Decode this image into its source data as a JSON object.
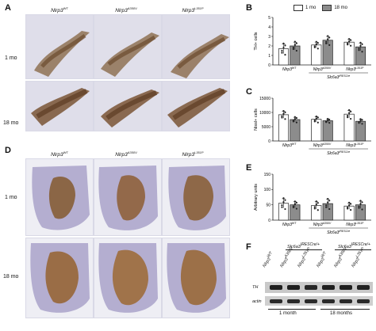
{
  "panels": {
    "A": {
      "letter": "A",
      "genotypes": [
        "Nlrp3",
        "Nlrp3",
        "Nlrp3"
      ],
      "genotype_sups": [
        "WT",
        "A350V",
        "L351P"
      ],
      "rows": [
        "1 mo",
        "18 mo"
      ]
    },
    "D": {
      "letter": "D",
      "genotypes": [
        "Nlrp3",
        "Nlrp3",
        "Nlrp3"
      ],
      "genotype_sups": [
        "WT",
        "A350V",
        "L351P"
      ],
      "rows": [
        "1 mo",
        "18 mo"
      ]
    },
    "B": {
      "letter": "B"
    },
    "C": {
      "letter": "C"
    },
    "E": {
      "letter": "E"
    },
    "F": {
      "letter": "F"
    }
  },
  "legend": {
    "items": [
      {
        "label": "1 mo",
        "color": "#ffffff"
      },
      {
        "label": "18 mo",
        "color": "#8c8c8c"
      }
    ]
  },
  "xaxis_groups": {
    "lane1": "Nlrp3",
    "lane1_sup": "WT",
    "lane2": "Nlrp3",
    "lane2_sup": "A350V",
    "lane3": "Nlrp3",
    "lane3_sup": "L351P",
    "driver": "Slc6a3",
    "driver_sup": "IRESCre"
  },
  "chart_data": [
    {
      "panel": "B",
      "type": "bar",
      "ylabel": "TH+ cells",
      "ylim": [
        0,
        5
      ],
      "yticks": [
        "0",
        "1",
        "2",
        "3",
        "4",
        "5"
      ],
      "groups": [
        "WT",
        "A350V",
        "L351P"
      ],
      "series": [
        {
          "name": "1 mo",
          "values": [
            1.7,
            2.1,
            2.4
          ]
        },
        {
          "name": "18 mo",
          "values": [
            2.0,
            2.6,
            1.9
          ]
        }
      ],
      "errors": [
        [
          0.5,
          0.3,
          0.3
        ],
        [
          0.4,
          0.4,
          0.4
        ]
      ]
    },
    {
      "panel": "C",
      "type": "bar",
      "ylabel": "Nissl+ cells",
      "ylim": [
        0,
        15000
      ],
      "yticks": [
        "0",
        "5000",
        "10000",
        "15000"
      ],
      "groups": [
        "WT",
        "A350V",
        "L351P"
      ],
      "series": [
        {
          "name": "1 mo",
          "values": [
            9200,
            7600,
            9400
          ]
        },
        {
          "name": "18 mo",
          "values": [
            7500,
            7100,
            6900
          ]
        }
      ],
      "errors": [
        [
          1200,
          900,
          1300
        ],
        [
          800,
          600,
          700
        ]
      ]
    },
    {
      "panel": "E",
      "type": "bar",
      "ylabel": "Arbitrary units",
      "ylim": [
        0,
        150
      ],
      "yticks": [
        "0",
        "50",
        "100",
        "150"
      ],
      "groups": [
        "WT",
        "A350V",
        "L351P"
      ],
      "series": [
        {
          "name": "1 mo",
          "values": [
            55,
            48,
            46
          ]
        },
        {
          "name": "18 mo",
          "values": [
            50,
            54,
            50
          ]
        }
      ],
      "errors": [
        [
          15,
          12,
          10
        ],
        [
          10,
          14,
          12
        ]
      ]
    }
  ],
  "western": {
    "bands": [
      "TH",
      "actin"
    ],
    "lane_labels": [
      "Nlrp3",
      "Nlrp3",
      "Nlrp3",
      "Nlrp3",
      "Nlrp3",
      "Nlrp3"
    ],
    "lane_sups": [
      "WT",
      "A350V",
      "L351P",
      "WT",
      "A350V",
      "L351P"
    ],
    "driver_1": "Slc6a3",
    "driver_1_sup": "IRESCre/+",
    "driver_2": "Slc6a3",
    "driver_2_sup": "IRESCre/+",
    "timepoints": [
      "1 month",
      "18 months"
    ]
  }
}
